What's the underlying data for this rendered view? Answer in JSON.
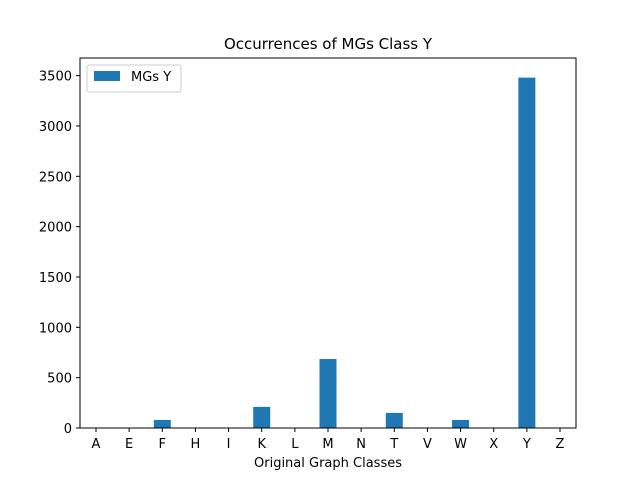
{
  "chart_data": {
    "type": "bar",
    "title": "Occurrences of MGs Class Y",
    "xlabel": "Original Graph Classes",
    "ylabel": "",
    "categories": [
      "A",
      "E",
      "F",
      "H",
      "I",
      "K",
      "L",
      "M",
      "N",
      "T",
      "V",
      "W",
      "X",
      "Y",
      "Z"
    ],
    "series": [
      {
        "name": "MGs Y",
        "color": "#1f77b4",
        "values": [
          0,
          0,
          80,
          0,
          0,
          210,
          0,
          685,
          0,
          150,
          0,
          80,
          0,
          3480,
          0
        ]
      }
    ],
    "ylim": [
      0,
      3675
    ],
    "yticks": [
      0,
      500,
      1000,
      1500,
      2000,
      2500,
      3000,
      3500
    ],
    "legend_position": "top-left",
    "grid": false
  }
}
